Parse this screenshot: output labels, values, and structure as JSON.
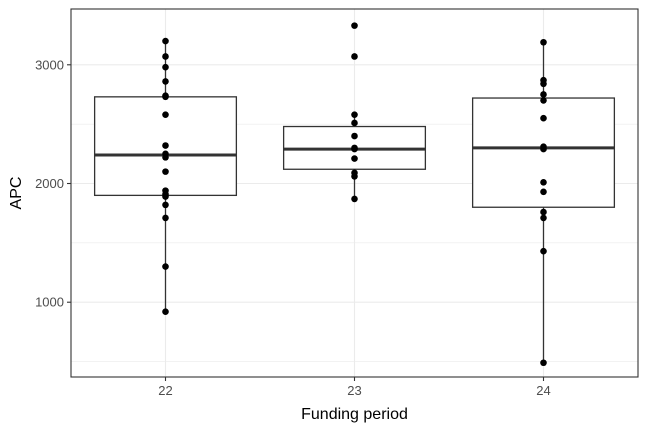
{
  "chart_data": {
    "type": "box",
    "xlabel": "Funding period",
    "ylabel": "APC",
    "ylim": [
      370,
      3470
    ],
    "yticks": [
      1000,
      2000,
      3000
    ],
    "grid": true,
    "legend": "none",
    "groups": [
      {
        "label": "22",
        "box": {
          "whisker_low": 920,
          "q1": 1900,
          "median": 2240,
          "q3": 2730,
          "whisker_high": 3200
        },
        "points": [
          3200,
          3070,
          2980,
          2860,
          2740,
          2730,
          2580,
          2320,
          2250,
          2220,
          2100,
          1940,
          1910,
          1890,
          1820,
          1710,
          1300,
          920
        ]
      },
      {
        "label": "23",
        "box": {
          "whisker_low": 1870,
          "q1": 2120,
          "median": 2290,
          "q3": 2480,
          "whisker_high": 2580
        },
        "points": [
          3330,
          3070,
          2580,
          2510,
          2400,
          2300,
          2290,
          2210,
          2090,
          2060,
          1870
        ]
      },
      {
        "label": "24",
        "box": {
          "whisker_low": 490,
          "q1": 1800,
          "median": 2300,
          "q3": 2720,
          "whisker_high": 3190
        },
        "points": [
          3190,
          2870,
          2840,
          2750,
          2700,
          2550,
          2310,
          2290,
          2010,
          1930,
          1760,
          1710,
          1430,
          490
        ]
      }
    ],
    "colors": {
      "box_stroke": "#333333",
      "point": "#000000",
      "grid": "#ebebeb",
      "panel_border": "#333333",
      "tick": "#333333"
    }
  }
}
